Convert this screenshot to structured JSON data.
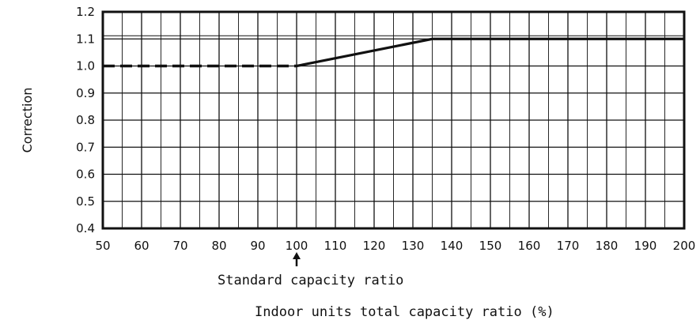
{
  "chart_data": {
    "type": "line",
    "ylabel": "Correction",
    "xlabel": "Indoor units total capacity ratio (%)",
    "annotation": "Standard capacity ratio",
    "annotation_x": 100,
    "xlim": [
      50,
      200
    ],
    "ylim": [
      0.4,
      1.2
    ],
    "x_ticks": [
      50,
      60,
      70,
      80,
      90,
      100,
      110,
      120,
      130,
      140,
      150,
      160,
      170,
      180,
      190,
      200
    ],
    "y_ticks": [
      0.4,
      0.5,
      0.6,
      0.7,
      0.8,
      0.9,
      1.0,
      1.1,
      1.2
    ],
    "x_tick_labels": [
      "50",
      "60",
      "70",
      "80",
      "90",
      "100",
      "110",
      "120",
      "130",
      "140",
      "150",
      "160",
      "170",
      "180",
      "190",
      "200"
    ],
    "y_tick_labels": [
      "0.4",
      "0.5",
      "0.6",
      "0.7",
      "0.8",
      "0.9",
      "1.0",
      "1.1",
      "1.2"
    ],
    "grid": true,
    "minor_x_step": 5,
    "series": [
      {
        "style": "dashed",
        "x": [
          50,
          100
        ],
        "y": [
          1.0,
          1.0
        ]
      },
      {
        "style": "solid",
        "x": [
          100,
          135,
          200
        ],
        "y": [
          1.0,
          1.1,
          1.1
        ]
      }
    ],
    "colors": {
      "line": "#111111",
      "grid": "#111111"
    }
  }
}
